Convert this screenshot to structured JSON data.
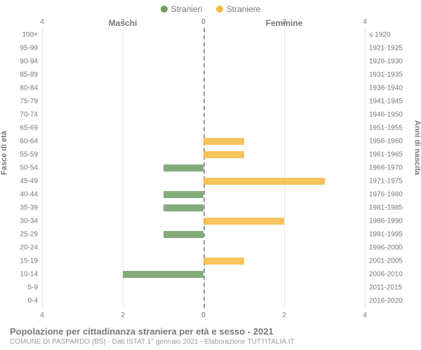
{
  "chart": {
    "type": "population-pyramid",
    "background_color": "#ffffff",
    "text_color": "#777777",
    "grid_color": "#e6e6e6",
    "center_line_color": "#6b6b6b",
    "series": {
      "male": {
        "label": "Stranieri",
        "color": "#6f9e64"
      },
      "female": {
        "label": "Straniere",
        "color": "#f4b942"
      }
    },
    "side_titles": {
      "left": "Maschi",
      "right": "Femmine"
    },
    "axis_titles": {
      "left": "Fasce di età",
      "right": "Anni di nascita"
    },
    "x_axis": {
      "max": 4,
      "ticks": [
        0,
        2,
        4
      ]
    },
    "categories": [
      {
        "age": "100+",
        "birth": "≤ 1920",
        "male": 0,
        "female": 0
      },
      {
        "age": "95-99",
        "birth": "1921-1925",
        "male": 0,
        "female": 0
      },
      {
        "age": "90-94",
        "birth": "1926-1930",
        "male": 0,
        "female": 0
      },
      {
        "age": "85-89",
        "birth": "1931-1935",
        "male": 0,
        "female": 0
      },
      {
        "age": "80-84",
        "birth": "1936-1940",
        "male": 0,
        "female": 0
      },
      {
        "age": "75-79",
        "birth": "1941-1945",
        "male": 0,
        "female": 0
      },
      {
        "age": "70-74",
        "birth": "1946-1950",
        "male": 0,
        "female": 0
      },
      {
        "age": "65-69",
        "birth": "1951-1955",
        "male": 0,
        "female": 0
      },
      {
        "age": "60-64",
        "birth": "1956-1960",
        "male": 0,
        "female": 1
      },
      {
        "age": "55-59",
        "birth": "1961-1965",
        "male": 0,
        "female": 1
      },
      {
        "age": "50-54",
        "birth": "1966-1970",
        "male": 1,
        "female": 0
      },
      {
        "age": "45-49",
        "birth": "1971-1975",
        "male": 0,
        "female": 3
      },
      {
        "age": "40-44",
        "birth": "1976-1980",
        "male": 1,
        "female": 0
      },
      {
        "age": "35-39",
        "birth": "1981-1985",
        "male": 1,
        "female": 0
      },
      {
        "age": "30-34",
        "birth": "1986-1990",
        "male": 0,
        "female": 2
      },
      {
        "age": "25-29",
        "birth": "1991-1995",
        "male": 1,
        "female": 0
      },
      {
        "age": "20-24",
        "birth": "1996-2000",
        "male": 0,
        "female": 0
      },
      {
        "age": "15-19",
        "birth": "2001-2005",
        "male": 0,
        "female": 1
      },
      {
        "age": "10-14",
        "birth": "2006-2010",
        "male": 2,
        "female": 0
      },
      {
        "age": "5-9",
        "birth": "2011-2015",
        "male": 0,
        "female": 0
      },
      {
        "age": "0-4",
        "birth": "2016-2020",
        "male": 0,
        "female": 0
      }
    ],
    "footer": {
      "title": "Popolazione per cittadinanza straniera per età e sesso - 2021",
      "subtitle": "COMUNE DI PASPARDO (BS) - Dati ISTAT 1° gennaio 2021 - Elaborazione TUTTITALIA.IT"
    }
  }
}
